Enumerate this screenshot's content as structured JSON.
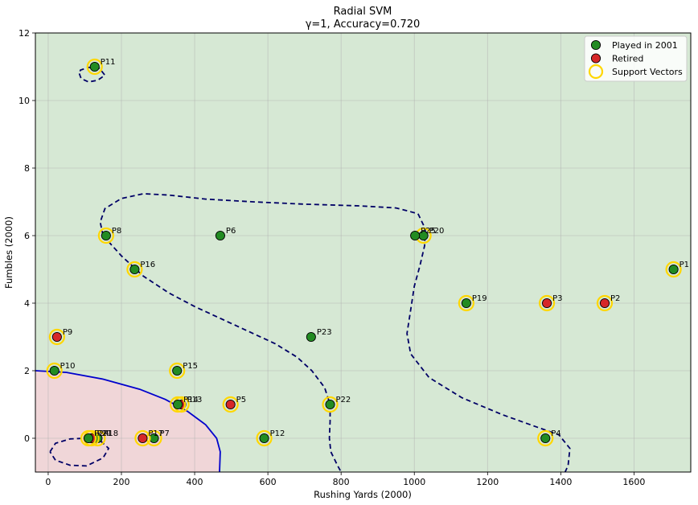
{
  "chart_data": {
    "type": "scatter",
    "title": "Radial SVM",
    "subtitle": "γ=1, Accuracy=0.720",
    "xlabel": "Rushing Yards (2000)",
    "ylabel": "Fumbles (2000)",
    "xlim": [
      -35,
      1755
    ],
    "ylim": [
      -1,
      12
    ],
    "xticks": [
      0,
      200,
      400,
      600,
      800,
      1000,
      1200,
      1400,
      1600
    ],
    "yticks": [
      0,
      2,
      4,
      6,
      8,
      10,
      12
    ],
    "grid": true,
    "legend_position": "top-right",
    "colors": {
      "played": "#228B22",
      "retired": "#D62728",
      "support": "#FFD700",
      "region_played": "#D6E8D4",
      "region_retired": "#F0D6D8",
      "boundary": "#0000CC",
      "margin": "#000066"
    },
    "legend": [
      {
        "label": "Played in 2001",
        "kind": "played"
      },
      {
        "label": "Retired",
        "kind": "retired"
      },
      {
        "label": "Support Vectors",
        "kind": "support"
      }
    ],
    "points": [
      {
        "label": "P1",
        "x": 1708,
        "y": 5,
        "cls": "played",
        "sv": true
      },
      {
        "label": "P2",
        "x": 1520,
        "y": 4,
        "cls": "retired",
        "sv": true
      },
      {
        "label": "P3",
        "x": 1362,
        "y": 4,
        "cls": "retired",
        "sv": true
      },
      {
        "label": "P4",
        "x": 1358,
        "y": 0,
        "cls": "played",
        "sv": true
      },
      {
        "label": "P5",
        "x": 498,
        "y": 1,
        "cls": "retired",
        "sv": true
      },
      {
        "label": "P6",
        "x": 470,
        "y": 6,
        "cls": "played",
        "sv": false
      },
      {
        "label": "P7",
        "x": 289,
        "y": 0,
        "cls": "played",
        "sv": true
      },
      {
        "label": "P8",
        "x": 158,
        "y": 6,
        "cls": "played",
        "sv": true
      },
      {
        "label": "P9",
        "x": 24,
        "y": 3,
        "cls": "retired",
        "sv": true
      },
      {
        "label": "P10",
        "x": 17,
        "y": 2,
        "cls": "played",
        "sv": true
      },
      {
        "label": "P11",
        "x": 127,
        "y": 11,
        "cls": "played",
        "sv": true
      },
      {
        "label": "P12",
        "x": 590,
        "y": 0,
        "cls": "played",
        "sv": true
      },
      {
        "label": "P13",
        "x": 364,
        "y": 1,
        "cls": "retired",
        "sv": true
      },
      {
        "label": "P14",
        "x": 354,
        "y": 1,
        "cls": "played",
        "sv": true
      },
      {
        "label": "P15",
        "x": 352,
        "y": 2,
        "cls": "played",
        "sv": true
      },
      {
        "label": "P16",
        "x": 236,
        "y": 5,
        "cls": "played",
        "sv": true
      },
      {
        "label": "P17",
        "x": 258,
        "y": 0,
        "cls": "retired",
        "sv": true
      },
      {
        "label": "P18",
        "x": 135,
        "y": 0,
        "cls": "played",
        "sv": true
      },
      {
        "label": "P19",
        "x": 1142,
        "y": 4,
        "cls": "played",
        "sv": true
      },
      {
        "label": "P20",
        "x": 1025,
        "y": 6,
        "cls": "played",
        "sv": true
      },
      {
        "label": "P21",
        "x": 118,
        "y": 0,
        "cls": "retired",
        "sv": true
      },
      {
        "label": "P22",
        "x": 770,
        "y": 1,
        "cls": "played",
        "sv": true
      },
      {
        "label": "P23",
        "x": 718,
        "y": 3,
        "cls": "played",
        "sv": false
      },
      {
        "label": "P24",
        "x": 110,
        "y": 0,
        "cls": "played",
        "sv": true
      },
      {
        "label": "P25",
        "x": 1002,
        "y": 6,
        "cls": "played",
        "sv": false
      }
    ],
    "decision_boundary": [
      [
        -35,
        2
      ],
      [
        50,
        1.95
      ],
      [
        150,
        1.75
      ],
      [
        250,
        1.45
      ],
      [
        320,
        1.15
      ],
      [
        380,
        0.8
      ],
      [
        430,
        0.4
      ],
      [
        460,
        0.0
      ],
      [
        470,
        -0.4
      ],
      [
        468,
        -1
      ]
    ],
    "margin_curves": [
      [
        [
          150,
          6.0
        ],
        [
          142,
          6.4
        ],
        [
          155,
          6.8
        ],
        [
          200,
          7.1
        ],
        [
          260,
          7.24
        ],
        [
          330,
          7.2
        ],
        [
          430,
          7.08
        ],
        [
          560,
          7.0
        ],
        [
          700,
          6.93
        ],
        [
          850,
          6.88
        ],
        [
          950,
          6.82
        ],
        [
          1010,
          6.65
        ],
        [
          1030,
          6.2
        ],
        [
          1028,
          5.7
        ],
        [
          1015,
          5.1
        ],
        [
          1000,
          4.5
        ],
        [
          990,
          3.8
        ],
        [
          980,
          3.1
        ],
        [
          990,
          2.5
        ],
        [
          1040,
          1.8
        ],
        [
          1130,
          1.2
        ],
        [
          1240,
          0.7
        ],
        [
          1330,
          0.35
        ],
        [
          1395,
          0.1
        ],
        [
          1425,
          -0.3
        ],
        [
          1420,
          -0.8
        ],
        [
          1412,
          -1
        ]
      ],
      [
        [
          150,
          6.0
        ],
        [
          200,
          5.4
        ],
        [
          260,
          4.8
        ],
        [
          330,
          4.3
        ],
        [
          400,
          3.9
        ],
        [
          480,
          3.5
        ],
        [
          560,
          3.1
        ],
        [
          620,
          2.8
        ],
        [
          680,
          2.4
        ],
        [
          720,
          2.0
        ],
        [
          755,
          1.5
        ],
        [
          770,
          1.0
        ],
        [
          770,
          0.5
        ],
        [
          768,
          0.0
        ],
        [
          772,
          -0.4
        ],
        [
          790,
          -0.8
        ],
        [
          800,
          -1
        ]
      ],
      [
        [
          85,
          10.8
        ],
        [
          90,
          10.65
        ],
        [
          110,
          10.55
        ],
        [
          135,
          10.6
        ],
        [
          155,
          10.75
        ],
        [
          140,
          10.95
        ],
        [
          110,
          10.98
        ],
        [
          88,
          10.9
        ],
        [
          85,
          10.8
        ]
      ],
      [
        [
          5,
          -0.4
        ],
        [
          20,
          -0.15
        ],
        [
          60,
          -0.02
        ],
        [
          100,
          0.0
        ],
        [
          140,
          -0.05
        ],
        [
          165,
          -0.3
        ],
        [
          150,
          -0.58
        ],
        [
          105,
          -0.82
        ],
        [
          60,
          -0.8
        ],
        [
          20,
          -0.65
        ],
        [
          5,
          -0.4
        ]
      ]
    ]
  }
}
